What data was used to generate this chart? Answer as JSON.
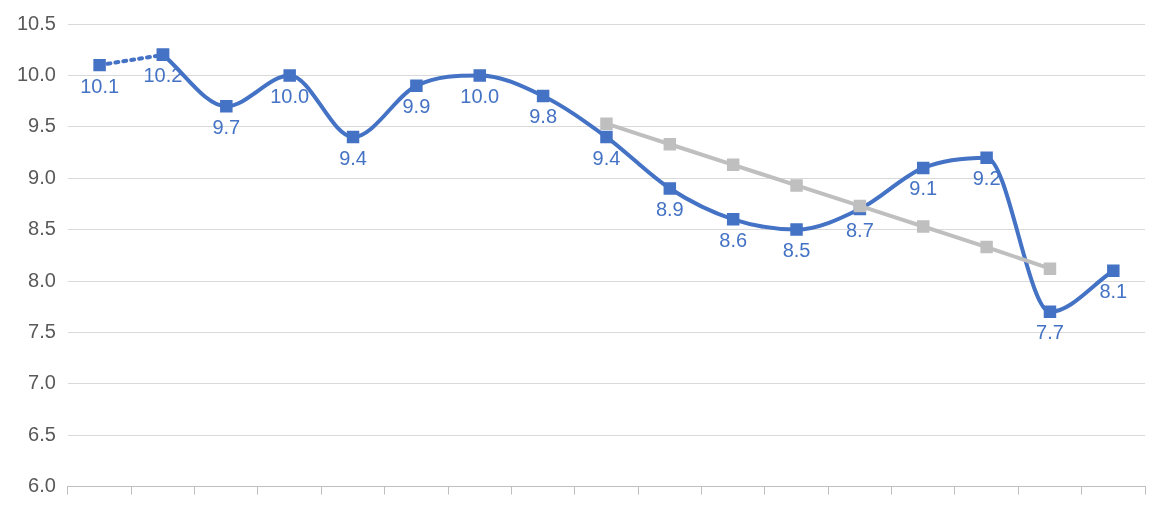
{
  "chart_data": {
    "type": "line",
    "categories": [
      null,
      null,
      null,
      null,
      null,
      null,
      null,
      null,
      null,
      null,
      null,
      null,
      null,
      null,
      null,
      null,
      null
    ],
    "series": [
      {
        "color": "#4472c4",
        "line_style": "dotted",
        "marker": "square",
        "values": [
          10.1,
          10.2,
          null,
          null,
          null,
          null,
          null,
          null,
          null,
          null,
          null,
          null,
          null,
          null,
          null,
          null,
          null
        ],
        "value_labels": [
          "10.1",
          null,
          null,
          null,
          null,
          null,
          null,
          null,
          null,
          null,
          null,
          null,
          null,
          null,
          null,
          null,
          null
        ]
      },
      {
        "color": "#4472c4",
        "line_style": "solid",
        "marker": "square",
        "values": [
          null,
          10.2,
          9.7,
          10.0,
          9.4,
          9.9,
          10.0,
          9.8,
          9.4,
          8.9,
          8.6,
          8.5,
          8.7,
          9.1,
          9.2,
          7.7,
          8.1
        ],
        "value_labels": [
          null,
          "10.2",
          "9.7",
          "10.0",
          "9.4",
          "9.9",
          "10.0",
          "9.8",
          "9.4",
          "8.9",
          "8.6",
          "8.5",
          "8.7",
          "9.1",
          "9.2",
          "7.7",
          "8.1"
        ]
      },
      {
        "color": "#bfbfbf",
        "line_style": "solid",
        "marker": "square",
        "values": [
          null,
          null,
          null,
          null,
          null,
          null,
          null,
          null,
          9.53,
          9.33,
          9.13,
          8.93,
          8.73,
          8.53,
          8.33,
          8.12,
          null
        ]
      }
    ],
    "ylim": [
      6.0,
      10.5
    ],
    "yticks": [
      {
        "value": 6.0,
        "label": "6.0"
      },
      {
        "value": 6.5,
        "label": "6.5"
      },
      {
        "value": 7.0,
        "label": "7.0"
      },
      {
        "value": 7.5,
        "label": "7.5"
      },
      {
        "value": 8.0,
        "label": "8.0"
      },
      {
        "value": 8.5,
        "label": "8.5"
      },
      {
        "value": 9.0,
        "label": "9.0"
      },
      {
        "value": 9.5,
        "label": "9.5"
      },
      {
        "value": 10.0,
        "label": "10.0"
      },
      {
        "value": 10.5,
        "label": "10.5"
      }
    ],
    "grid": "y",
    "legend": false
  }
}
